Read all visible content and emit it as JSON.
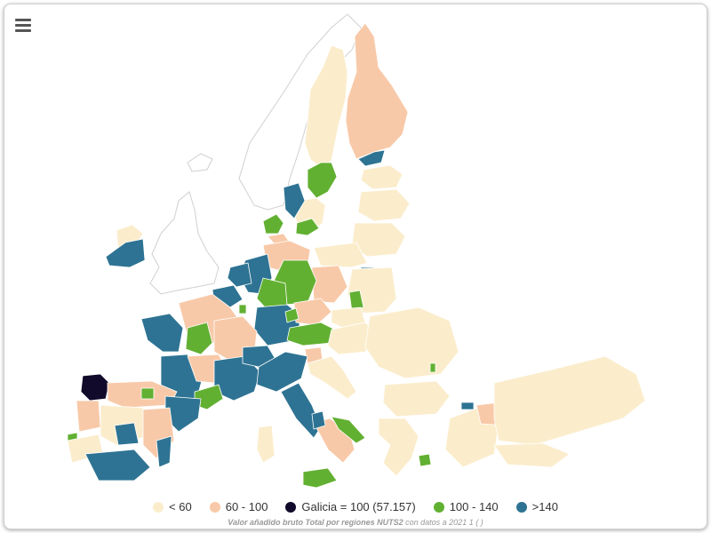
{
  "colors": {
    "lt60": "#fbedcc",
    "r60_100": "#f8c9a8",
    "galicia": "#120a2a",
    "r100_140": "#62b032",
    "gt140": "#2e7393",
    "nodata": "#ffffff",
    "border": "#d8d8d8"
  },
  "menu": {
    "icon": "hamburger-menu-icon"
  },
  "legend": [
    {
      "key": "lt60",
      "label": "< 60"
    },
    {
      "key": "r60_100",
      "label": "60 - 100"
    },
    {
      "key": "galicia",
      "label": "Galicia = 100 (57.157)"
    },
    {
      "key": "r100_140",
      "label": "100 - 140"
    },
    {
      "key": "gt140",
      "label": ">140"
    }
  ],
  "caption": {
    "bold": "Valor añadido bruto Total por regiones NUTS2",
    "rest": " con datos a 2021 1 ( )"
  }
}
